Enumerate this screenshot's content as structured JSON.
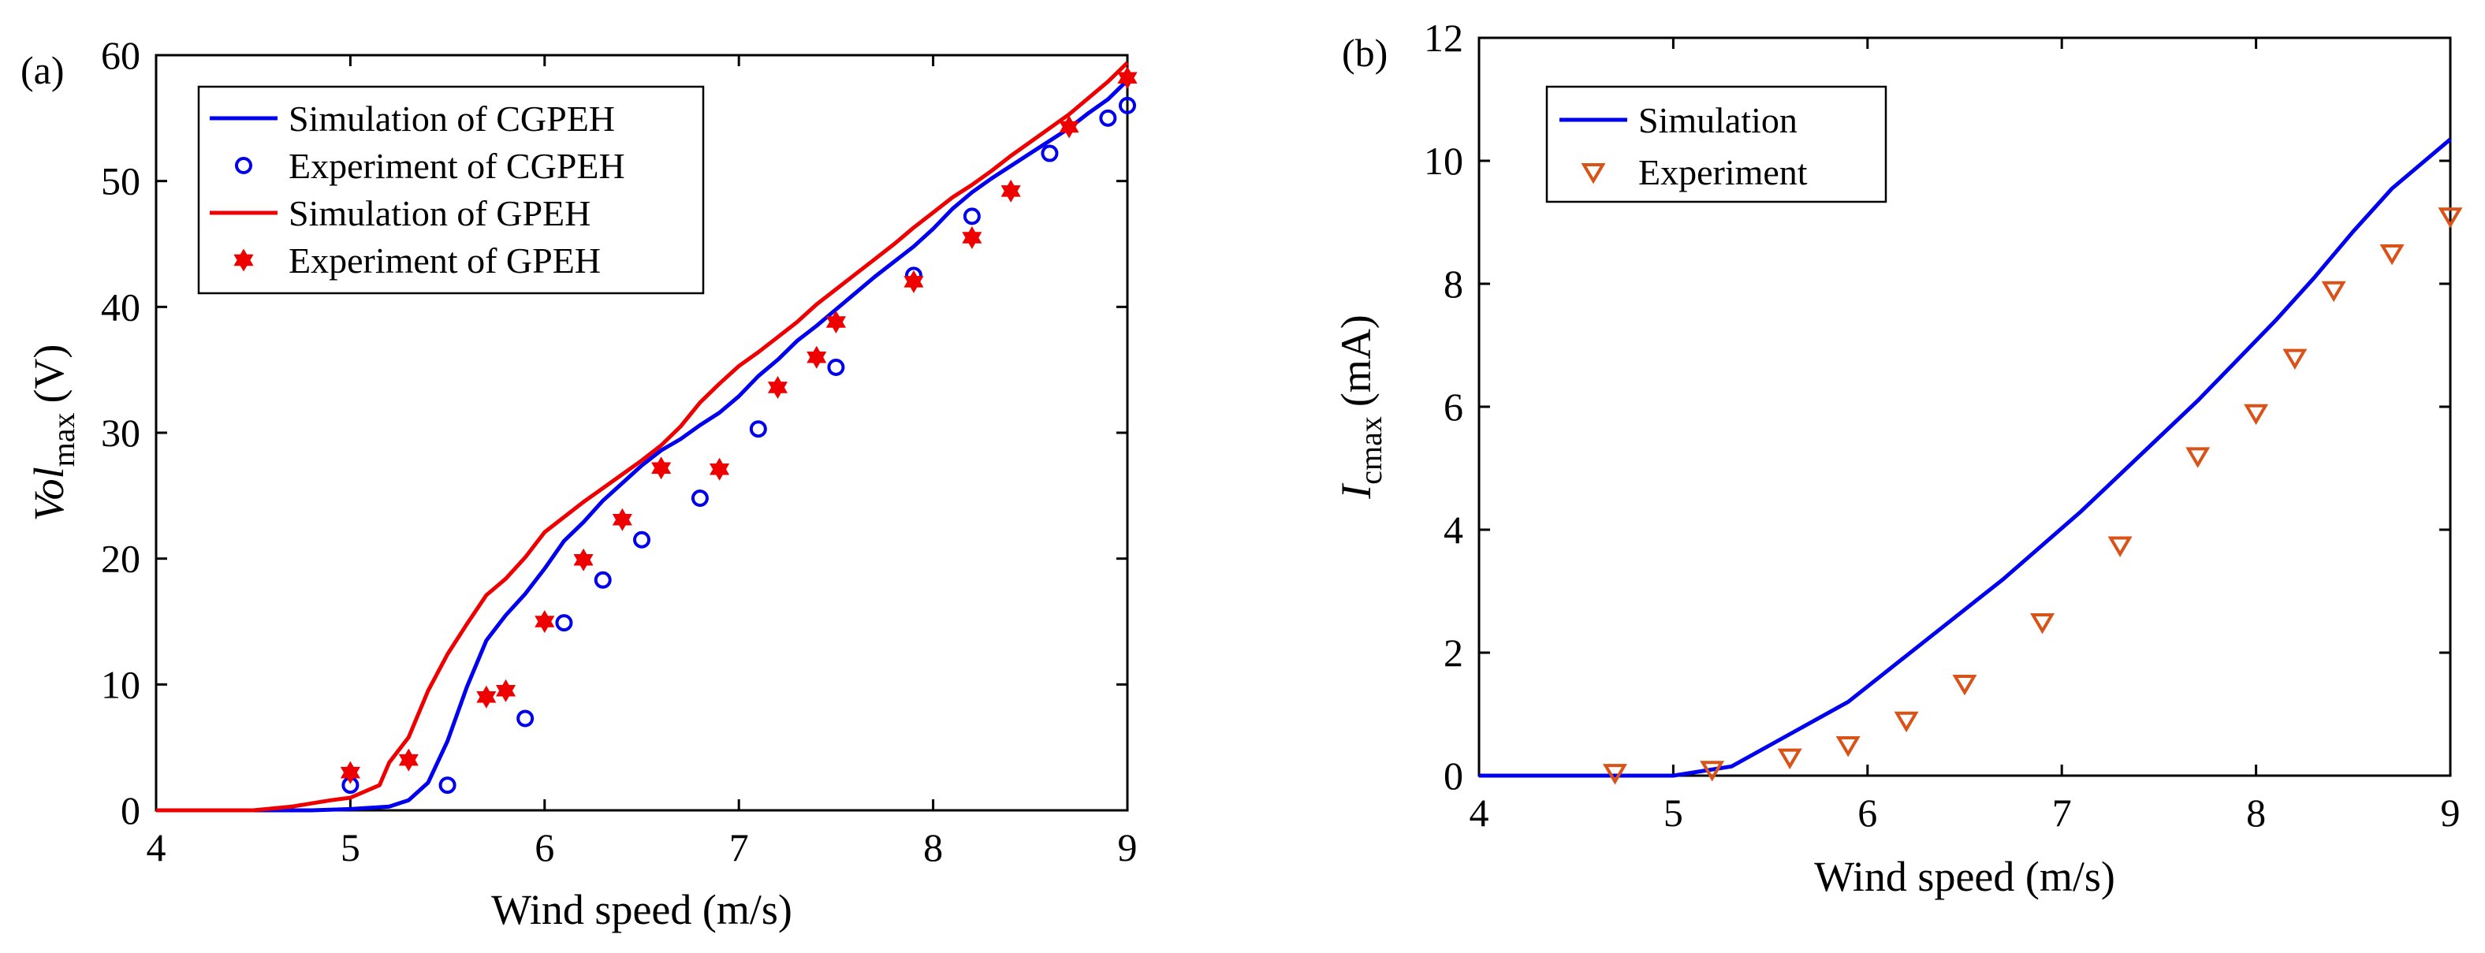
{
  "chart_data": [
    {
      "type": "line",
      "panel_label": "(a)",
      "xlabel": "Wind speed (m/s)",
      "ylabel_main": "Vol",
      "ylabel_sub": "max",
      "ylabel_unit": "(V)",
      "xlim": [
        4,
        9
      ],
      "ylim": [
        0,
        60
      ],
      "xticks": [
        "4",
        "5",
        "6",
        "7",
        "8",
        "9"
      ],
      "yticks": [
        "0",
        "10",
        "20",
        "30",
        "40",
        "50",
        "60"
      ],
      "legend_position": "top-left",
      "series": [
        {
          "name": "Simulation of CGPEH",
          "kind": "line",
          "color": "#0000ee",
          "x": [
            4.0,
            4.5,
            4.8,
            5.0,
            5.2,
            5.3,
            5.4,
            5.5,
            5.6,
            5.7,
            5.8,
            5.9,
            6.0,
            6.1,
            6.2,
            6.3,
            6.4,
            6.5,
            6.6,
            6.7,
            6.8,
            6.9,
            7.0,
            7.1,
            7.2,
            7.3,
            7.4,
            7.5,
            7.6,
            7.7,
            7.8,
            7.9,
            8.0,
            8.1,
            8.2,
            8.3,
            8.4,
            8.5,
            8.6,
            8.7,
            8.8,
            8.9,
            9.0
          ],
          "y": [
            0.0,
            0.0,
            0.0,
            0.1,
            0.3,
            0.8,
            2.2,
            5.5,
            9.8,
            13.5,
            15.5,
            17.2,
            19.2,
            21.4,
            22.9,
            24.6,
            26.0,
            27.4,
            28.6,
            29.5,
            30.6,
            31.6,
            32.9,
            34.5,
            35.8,
            37.3,
            38.5,
            39.8,
            41.1,
            42.4,
            43.6,
            44.8,
            46.2,
            47.8,
            49.1,
            50.2,
            51.2,
            52.2,
            53.2,
            54.2,
            55.4,
            56.5,
            58.0
          ]
        },
        {
          "name": "Experiment of CGPEH",
          "kind": "scatter",
          "marker": "circle",
          "color": "#0000ee",
          "x": [
            5.0,
            5.5,
            5.9,
            6.1,
            6.3,
            6.5,
            6.8,
            7.1,
            7.5,
            7.9,
            8.2,
            8.6,
            8.9,
            9.0
          ],
          "y": [
            2.0,
            2.0,
            7.3,
            14.9,
            18.3,
            21.5,
            24.8,
            30.3,
            35.2,
            42.5,
            47.2,
            52.2,
            55.0,
            56.0
          ]
        },
        {
          "name": "Simulation of GPEH",
          "kind": "line",
          "color": "#ee0000",
          "x": [
            4.0,
            4.5,
            4.7,
            4.9,
            5.0,
            5.15,
            5.2,
            5.3,
            5.4,
            5.5,
            5.6,
            5.7,
            5.8,
            5.9,
            6.0,
            6.1,
            6.2,
            6.3,
            6.4,
            6.5,
            6.6,
            6.7,
            6.8,
            6.9,
            7.0,
            7.1,
            7.2,
            7.3,
            7.4,
            7.5,
            7.6,
            7.7,
            7.8,
            7.9,
            8.0,
            8.1,
            8.2,
            8.3,
            8.4,
            8.5,
            8.6,
            8.7,
            8.8,
            8.9,
            9.0
          ],
          "y": [
            0.0,
            0.0,
            0.3,
            0.8,
            1.0,
            2.0,
            3.8,
            5.8,
            9.5,
            12.4,
            14.8,
            17.1,
            18.4,
            20.1,
            22.1,
            23.3,
            24.5,
            25.6,
            26.7,
            27.8,
            29.0,
            30.5,
            32.4,
            33.9,
            35.3,
            36.4,
            37.6,
            38.8,
            40.2,
            41.4,
            42.6,
            43.8,
            45.0,
            46.3,
            47.5,
            48.7,
            49.7,
            50.8,
            52.0,
            53.1,
            54.2,
            55.3,
            56.6,
            57.9,
            59.4
          ]
        },
        {
          "name": "Experiment of GPEH",
          "kind": "scatter",
          "marker": "hexagram",
          "color": "#ee0000",
          "x": [
            5.0,
            5.3,
            5.7,
            5.8,
            6.0,
            6.2,
            6.4,
            6.6,
            6.9,
            7.2,
            7.4,
            7.5,
            7.9,
            8.2,
            8.4,
            8.7,
            9.0
          ],
          "y": [
            3.0,
            4.0,
            9.0,
            9.5,
            15.0,
            19.9,
            23.1,
            27.2,
            27.1,
            33.6,
            36.0,
            38.8,
            42.0,
            45.5,
            49.2,
            54.3,
            58.2
          ]
        }
      ]
    },
    {
      "type": "line",
      "panel_label": "(b)",
      "xlabel": "Wind speed (m/s)",
      "ylabel_main": "I",
      "ylabel_sub": "cmax",
      "ylabel_unit": "(mA)",
      "xlim": [
        4,
        9
      ],
      "ylim": [
        0,
        12
      ],
      "xticks": [
        "4",
        "5",
        "6",
        "7",
        "8",
        "9"
      ],
      "yticks": [
        "0",
        "2",
        "4",
        "6",
        "8",
        "10",
        "12"
      ],
      "legend_position": "top-left",
      "series": [
        {
          "name": "Simulation",
          "kind": "line",
          "color": "#0000ee",
          "x": [
            4.0,
            4.5,
            5.0,
            5.1,
            5.3,
            5.5,
            5.7,
            5.9,
            6.1,
            6.3,
            6.5,
            6.7,
            6.9,
            7.1,
            7.3,
            7.5,
            7.7,
            7.9,
            8.1,
            8.3,
            8.5,
            8.7,
            9.0
          ],
          "y": [
            0.0,
            0.0,
            0.0,
            0.05,
            0.15,
            0.5,
            0.85,
            1.2,
            1.7,
            2.2,
            2.7,
            3.2,
            3.75,
            4.3,
            4.9,
            5.5,
            6.1,
            6.75,
            7.4,
            8.1,
            8.85,
            9.55,
            10.35
          ]
        },
        {
          "name": "Experiment",
          "kind": "scatter",
          "marker": "triangle-down",
          "color": "#d95319",
          "x": [
            4.7,
            5.2,
            5.6,
            5.9,
            6.2,
            6.5,
            6.9,
            7.3,
            7.7,
            8.0,
            8.2,
            8.4,
            8.7,
            9.0
          ],
          "y": [
            0.05,
            0.1,
            0.3,
            0.5,
            0.9,
            1.5,
            2.5,
            3.75,
            5.2,
            5.9,
            6.8,
            7.9,
            8.5,
            9.1
          ]
        }
      ]
    }
  ]
}
